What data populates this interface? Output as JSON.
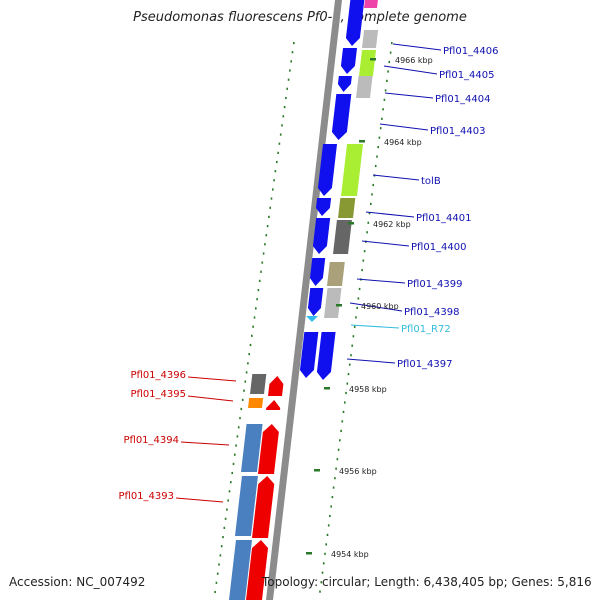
{
  "title": "Pseudomonas fluorescens Pf0-1, complete genome",
  "footer": {
    "accession": "Accession: NC_007492",
    "summary": "Topology: circular; Length: 6,438,405 bp; Genes: 5,816"
  },
  "colors": {
    "backbone": "#8c8c8c",
    "forward_label": "#1010b0",
    "reverse_label": "#cc0000",
    "rna_label": "#33bbdd",
    "tick": "#2a7a2a"
  },
  "ticks": [
    "4966 kbp",
    "4964 kbp",
    "4962 kbp",
    "4960 kbp",
    "4958 kbp",
    "4956 kbp",
    "4954 kbp"
  ],
  "forward_labels": [
    "Pfl01_4406",
    "Pfl01_4405",
    "Pfl01_4404",
    "Pfl01_4403",
    "tolB",
    "Pfl01_4401",
    "Pfl01_4400",
    "Pfl01_4399",
    "Pfl01_4398",
    "Pfl01_R72",
    "Pfl01_4397"
  ],
  "reverse_labels": [
    "Pfl01_4396",
    "Pfl01_4395",
    "Pfl01_4394",
    "Pfl01_4393"
  ],
  "gene_colors": {
    "cds": "#1010ee",
    "cog_yellowgreen": "#aaee33",
    "cog_olive": "#889933",
    "cog_gray": "#666666",
    "cog_lightgray": "#bbbbbb",
    "cog_khaki": "#aaa07a",
    "cog_pink": "#ee44aa",
    "cog_orange": "#ff8800",
    "cog_steelblue": "#4a80c0",
    "rev_cds": "#ee0000",
    "rna": "#33bbee"
  }
}
